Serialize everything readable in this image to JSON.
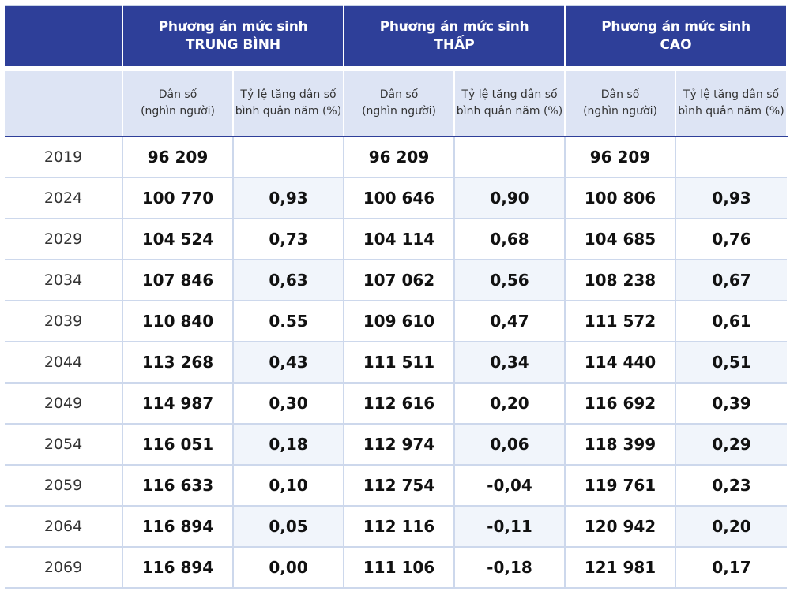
{
  "table": {
    "schemes": [
      {
        "line1": "Phương án mức sinh",
        "line2": "TRUNG BÌNH"
      },
      {
        "line1": "Phương án mức sinh",
        "line2": "THẤP"
      },
      {
        "line1": "Phương án mức sinh",
        "line2": "CAO"
      }
    ],
    "subheaders": {
      "pop_line1": "Dân số",
      "pop_line2": "(nghìn người)",
      "rate_line1": "Tỷ lệ tăng dân số",
      "rate_line2": "bình quân năm (%)"
    },
    "rows": [
      {
        "year": "2019",
        "medium_pop": "96 209",
        "medium_rate": "",
        "low_pop": "96 209",
        "low_rate": "",
        "high_pop": "96 209",
        "high_rate": ""
      },
      {
        "year": "2024",
        "medium_pop": "100 770",
        "medium_rate": "0,93",
        "low_pop": "100 646",
        "low_rate": "0,90",
        "high_pop": "100 806",
        "high_rate": "0,93"
      },
      {
        "year": "2029",
        "medium_pop": "104 524",
        "medium_rate": "0,73",
        "low_pop": "104 114",
        "low_rate": "0,68",
        "high_pop": "104 685",
        "high_rate": "0,76"
      },
      {
        "year": "2034",
        "medium_pop": "107 846",
        "medium_rate": "0,63",
        "low_pop": "107 062",
        "low_rate": "0,56",
        "high_pop": "108 238",
        "high_rate": "0,67"
      },
      {
        "year": "2039",
        "medium_pop": "110 840",
        "medium_rate": "0.55",
        "low_pop": "109 610",
        "low_rate": "0,47",
        "high_pop": "111 572",
        "high_rate": "0,61"
      },
      {
        "year": "2044",
        "medium_pop": "113 268",
        "medium_rate": "0,43",
        "low_pop": "111 511",
        "low_rate": "0,34",
        "high_pop": "114 440",
        "high_rate": "0,51"
      },
      {
        "year": "2049",
        "medium_pop": "114 987",
        "medium_rate": "0,30",
        "low_pop": "112 616",
        "low_rate": "0,20",
        "high_pop": "116 692",
        "high_rate": "0,39"
      },
      {
        "year": "2054",
        "medium_pop": "116 051",
        "medium_rate": "0,18",
        "low_pop": "112 974",
        "low_rate": "0,06",
        "high_pop": "118 399",
        "high_rate": "0,29"
      },
      {
        "year": "2059",
        "medium_pop": "116 633",
        "medium_rate": "0,10",
        "low_pop": "112 754",
        "low_rate": "-0,04",
        "high_pop": "119 761",
        "high_rate": "0,23"
      },
      {
        "year": "2064",
        "medium_pop": "116 894",
        "medium_rate": "0,05",
        "low_pop": "112 116",
        "low_rate": "-0,11",
        "high_pop": "120 942",
        "high_rate": "0,20"
      },
      {
        "year": "2069",
        "medium_pop": "116 894",
        "medium_rate": "0,00",
        "low_pop": "111 106",
        "low_rate": "-0,18",
        "high_pop": "121 981",
        "high_rate": "0,17"
      }
    ]
  },
  "colors": {
    "header_bg": "#2e3f99",
    "subheader_bg": "#dde4f4",
    "grid_line": "#cdd8ec",
    "alt_row_bg": "#f1f5fb"
  }
}
